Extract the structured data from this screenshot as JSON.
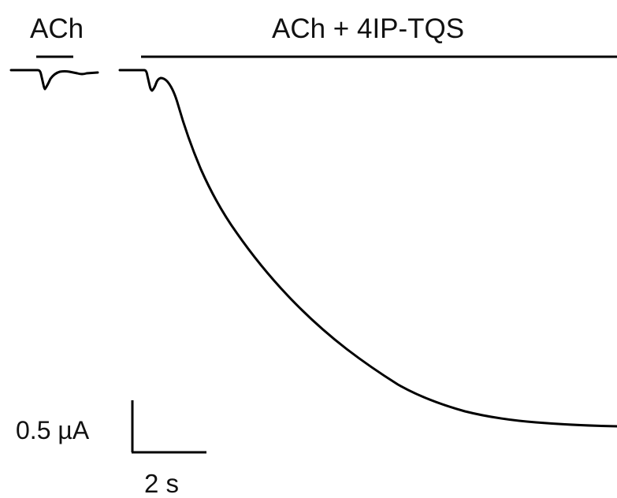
{
  "labels": {
    "control": "ACh",
    "treatment": "ACh + 4IP-TQS",
    "scale_current": "0.5 µA",
    "scale_time": "2 s"
  },
  "colors": {
    "trace": "#000000",
    "text": "#111111",
    "background": "#ffffff"
  }
}
